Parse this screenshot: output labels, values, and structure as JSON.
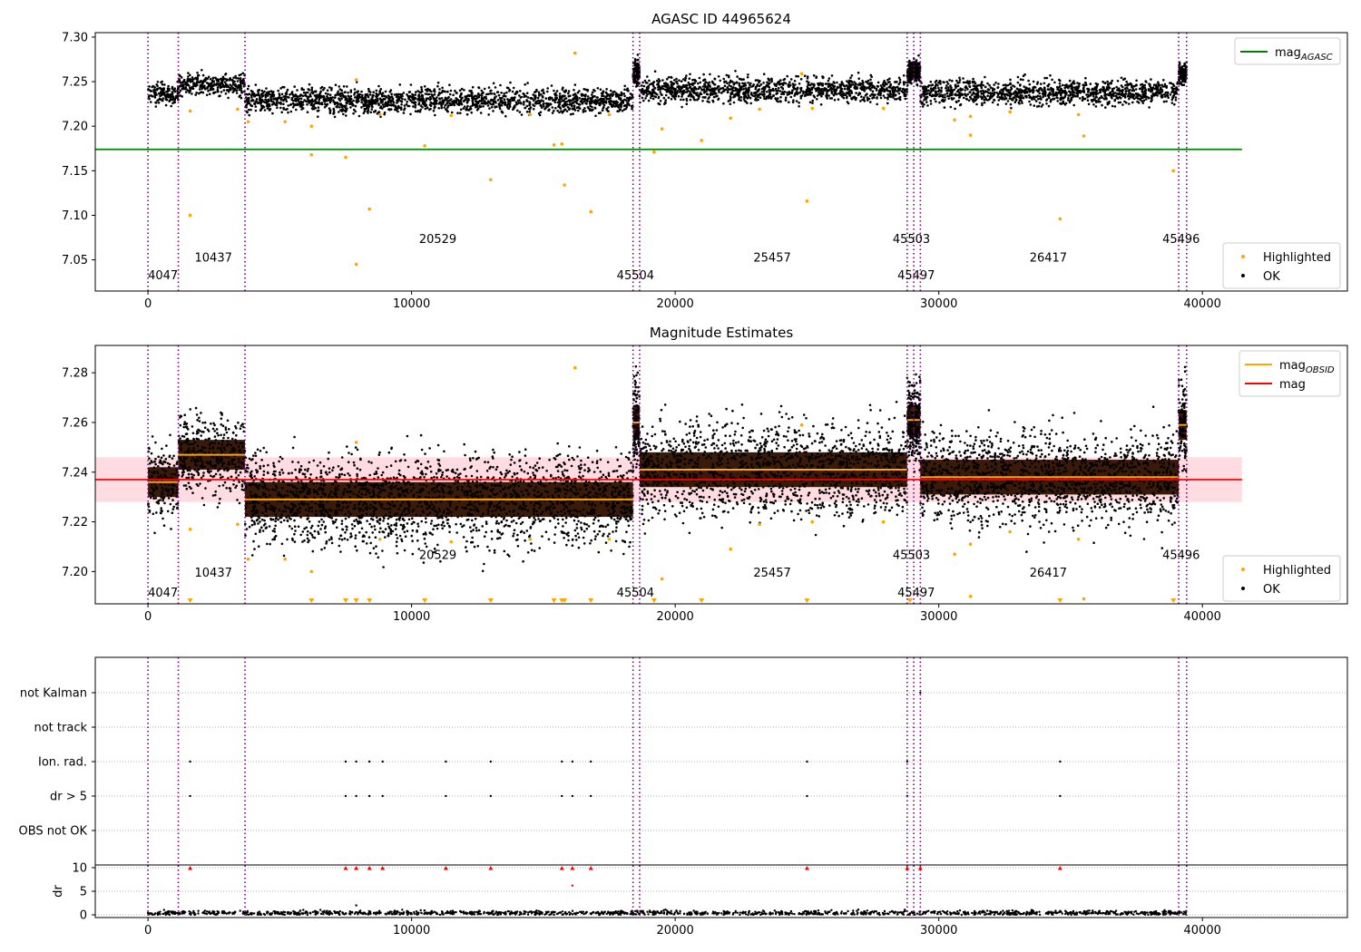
{
  "colors": {
    "highlight": "#ffa500",
    "ok": "#000000",
    "agasc_line": "#008000",
    "mean_line": "#ff0000",
    "band": "#ffc0cb",
    "obsid_line": "#ffa500",
    "vline": "#800080",
    "flag": "#ff0000",
    "grid": "#b0b0b0"
  },
  "chart_data": [
    {
      "type": "scatter",
      "title": "AGASC ID 44965624",
      "xlim": [
        -2000,
        45500
      ],
      "ylim": [
        7.015,
        7.305
      ],
      "yticks": [
        7.05,
        7.1,
        7.15,
        7.2,
        7.25,
        7.3
      ],
      "ytick_labels": [
        "7.05",
        "7.10",
        "7.15",
        "7.20",
        "7.25",
        "7.30"
      ],
      "xticks": [
        0,
        10000,
        20000,
        30000,
        40000
      ],
      "xtick_labels": [
        "0",
        "10000",
        "20000",
        "30000",
        "40000"
      ],
      "agasc_mag": 7.174,
      "agasc_x_range": [
        -2000,
        41500
      ],
      "legend_top": [
        {
          "label": "mag",
          "sub": "AGASC",
          "kind": "line",
          "color": "#008000"
        }
      ],
      "legend_bottom": [
        {
          "label": "Highlighted",
          "kind": "dot",
          "color": "#ffa500"
        },
        {
          "label": "OK",
          "kind": "dot",
          "color": "#000000"
        }
      ],
      "segments": [
        {
          "obsid": "4047",
          "x": [
            0,
            1150
          ],
          "level": 7.236,
          "spread": 0.006,
          "label_y": 7.028
        },
        {
          "obsid": "10437",
          "x": [
            1150,
            3680
          ],
          "level": 7.247,
          "spread": 0.006,
          "label_y": 7.048
        },
        {
          "obsid": "20529",
          "x": [
            3680,
            18400
          ],
          "level": 7.229,
          "spread": 0.007,
          "label_y": 7.069
        },
        {
          "obsid": "45504",
          "x": [
            18400,
            18650
          ],
          "level": 7.26,
          "spread": 0.007,
          "label_y": 7.028
        },
        {
          "obsid": "25457",
          "x": [
            18650,
            28800
          ],
          "level": 7.241,
          "spread": 0.007,
          "label_y": 7.048
        },
        {
          "obsid": "45503",
          "x": [
            28800,
            29050
          ],
          "level": 7.261,
          "spread": 0.006,
          "label_y": 7.069
        },
        {
          "obsid": "45497",
          "x": [
            29050,
            29300
          ],
          "level": 7.261,
          "spread": 0.006,
          "label_y": 7.028
        },
        {
          "obsid": "26417",
          "x": [
            29300,
            39100
          ],
          "level": 7.238,
          "spread": 0.007,
          "label_y": 7.048
        },
        {
          "obsid": "45496",
          "x": [
            39100,
            39400
          ],
          "level": 7.259,
          "spread": 0.006,
          "label_y": 7.069
        }
      ],
      "vlines": [
        0,
        1150,
        3680,
        18400,
        18650,
        28800,
        29050,
        29300,
        39100,
        39400
      ],
      "highlighted_points": [
        {
          "x": 1600,
          "y": 7.1
        },
        {
          "x": 1600,
          "y": 7.217
        },
        {
          "x": 3400,
          "y": 7.219
        },
        {
          "x": 3800,
          "y": 7.205
        },
        {
          "x": 5200,
          "y": 7.205
        },
        {
          "x": 6200,
          "y": 7.2
        },
        {
          "x": 6200,
          "y": 7.168
        },
        {
          "x": 7500,
          "y": 7.165
        },
        {
          "x": 7900,
          "y": 7.045
        },
        {
          "x": 7900,
          "y": 7.252
        },
        {
          "x": 8400,
          "y": 7.107
        },
        {
          "x": 8800,
          "y": 7.213
        },
        {
          "x": 10500,
          "y": 7.178
        },
        {
          "x": 11500,
          "y": 7.212
        },
        {
          "x": 13000,
          "y": 7.14
        },
        {
          "x": 14500,
          "y": 7.213
        },
        {
          "x": 15400,
          "y": 7.179
        },
        {
          "x": 15700,
          "y": 7.18
        },
        {
          "x": 15800,
          "y": 7.134
        },
        {
          "x": 16200,
          "y": 7.282
        },
        {
          "x": 16800,
          "y": 7.104
        },
        {
          "x": 17500,
          "y": 7.213
        },
        {
          "x": 19200,
          "y": 7.171
        },
        {
          "x": 19500,
          "y": 7.197
        },
        {
          "x": 21000,
          "y": 7.184
        },
        {
          "x": 22100,
          "y": 7.209
        },
        {
          "x": 23200,
          "y": 7.219
        },
        {
          "x": 24800,
          "y": 7.259
        },
        {
          "x": 25000,
          "y": 7.116
        },
        {
          "x": 25200,
          "y": 7.22
        },
        {
          "x": 27900,
          "y": 7.22
        },
        {
          "x": 30600,
          "y": 7.207
        },
        {
          "x": 31200,
          "y": 7.19
        },
        {
          "x": 31200,
          "y": 7.211
        },
        {
          "x": 32700,
          "y": 7.216
        },
        {
          "x": 34600,
          "y": 7.096
        },
        {
          "x": 35300,
          "y": 7.213
        },
        {
          "x": 35500,
          "y": 7.189
        },
        {
          "x": 38900,
          "y": 7.15
        }
      ]
    },
    {
      "type": "scatter",
      "title": "Magnitude Estimates",
      "xlim": [
        -2000,
        45500
      ],
      "ylim": [
        7.187,
        7.291
      ],
      "yticks": [
        7.2,
        7.22,
        7.24,
        7.26,
        7.28
      ],
      "ytick_labels": [
        "7.20",
        "7.22",
        "7.24",
        "7.26",
        "7.28"
      ],
      "xticks": [
        0,
        10000,
        20000,
        30000,
        40000
      ],
      "xtick_labels": [
        "0",
        "10000",
        "20000",
        "30000",
        "40000"
      ],
      "mean_mag": 7.237,
      "mean_band": [
        7.228,
        7.246
      ],
      "mean_x_range": [
        -2000,
        41500
      ],
      "legend_top": [
        {
          "label": "mag",
          "sub": "OBSID",
          "kind": "line",
          "color": "#ffa500"
        },
        {
          "label": "mag",
          "sub": "",
          "kind": "line",
          "color": "#ff0000"
        }
      ],
      "legend_bottom": [
        {
          "label": "Highlighted",
          "kind": "dot",
          "color": "#ffa500"
        },
        {
          "label": "OK",
          "kind": "dot",
          "color": "#000000"
        }
      ],
      "segment_label_y": [
        7.19,
        7.198,
        7.205
      ],
      "below_range_markers_x": [
        1600,
        6200,
        7500,
        7900,
        8400,
        10500,
        13000,
        15400,
        15700,
        15800,
        16800,
        19200,
        21000,
        25000,
        28900,
        34600,
        38900
      ]
    },
    {
      "type": "scatter",
      "title": "",
      "xlim": [
        -2000,
        45500
      ],
      "flag_categories": [
        "not Kalman",
        "not track",
        "Ion. rad.",
        "dr > 5",
        "OBS not OK"
      ],
      "xticks": [
        0,
        10000,
        20000,
        30000,
        40000
      ],
      "xtick_labels": [
        "0",
        "10000",
        "20000",
        "30000",
        "40000"
      ],
      "flag_points": {
        "not Kalman": [
          29300
        ],
        "not track": [],
        "Ion. rad.": [
          1600,
          7500,
          7900,
          8400,
          8900,
          11300,
          13000,
          15700,
          16100,
          16800,
          25000,
          28800,
          34600
        ],
        "dr > 5": [
          1600,
          7500,
          7900,
          8400,
          8900,
          11300,
          13000,
          15700,
          16100,
          16800,
          25000,
          28800,
          34600
        ],
        "OBS not OK": []
      },
      "dr": {
        "ylabel": "dr",
        "ylim": [
          -0.5,
          10.5
        ],
        "yticks": [
          0,
          5,
          10
        ],
        "ytick_labels": [
          "0",
          "5",
          "10"
        ],
        "typical": 0.4,
        "outliers": [
          {
            "x": 7900,
            "y": 2.0
          },
          {
            "x": 16100,
            "y": 6.2
          }
        ],
        "capped_x": [
          1600,
          7500,
          7900,
          8400,
          8900,
          11300,
          13000,
          15700,
          16100,
          16800,
          25000,
          28800,
          29300,
          34600
        ]
      }
    }
  ]
}
